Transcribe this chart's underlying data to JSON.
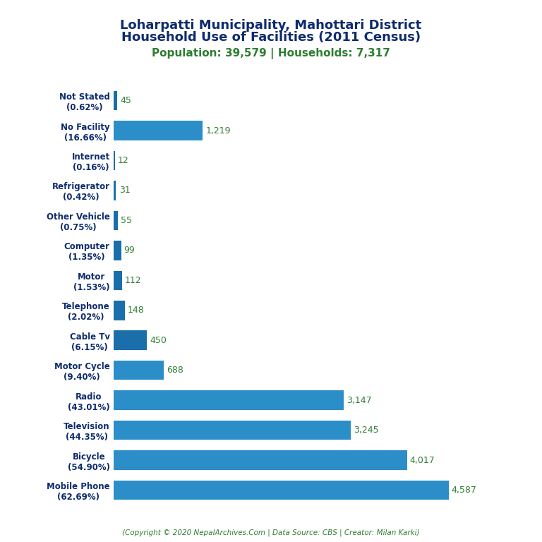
{
  "title_line1": "Loharpatti Municipality, Mahottari District",
  "title_line2": "Household Use of Facilities (2011 Census)",
  "subtitle": "Population: 39,579 | Households: 7,317",
  "footer": "(Copyright © 2020 NepalArchives.Com | Data Source: CBS | Creator: Milan Karki)",
  "categories": [
    "Mobile Phone\n(62.69%)",
    "Bicycle\n(54.90%)",
    "Television\n(44.35%)",
    "Radio\n(43.01%)",
    "Motor Cycle\n(9.40%)",
    "Cable Tv\n(6.15%)",
    "Telephone\n(2.02%)",
    "Motor\n(1.53%)",
    "Computer\n(1.35%)",
    "Other Vehicle\n(0.75%)",
    "Refrigerator\n(0.42%)",
    "Internet\n(0.16%)",
    "No Facility\n(16.66%)",
    "Not Stated\n(0.62%)"
  ],
  "values": [
    4587,
    4017,
    3245,
    3147,
    688,
    450,
    148,
    112,
    99,
    55,
    31,
    12,
    1219,
    45
  ],
  "bar_color_small": "#1a6eaa",
  "bar_color_large": "#2b8ec8",
  "title_color": "#0d2b6e",
  "subtitle_color": "#2e7d32",
  "footer_color": "#2e7d32",
  "value_color": "#2e7d32",
  "ylabel_color": "#0d2b6e",
  "background_color": "#ffffff",
  "xlim": [
    0,
    5200
  ],
  "figsize": [
    7.68,
    7.68
  ],
  "dpi": 100
}
